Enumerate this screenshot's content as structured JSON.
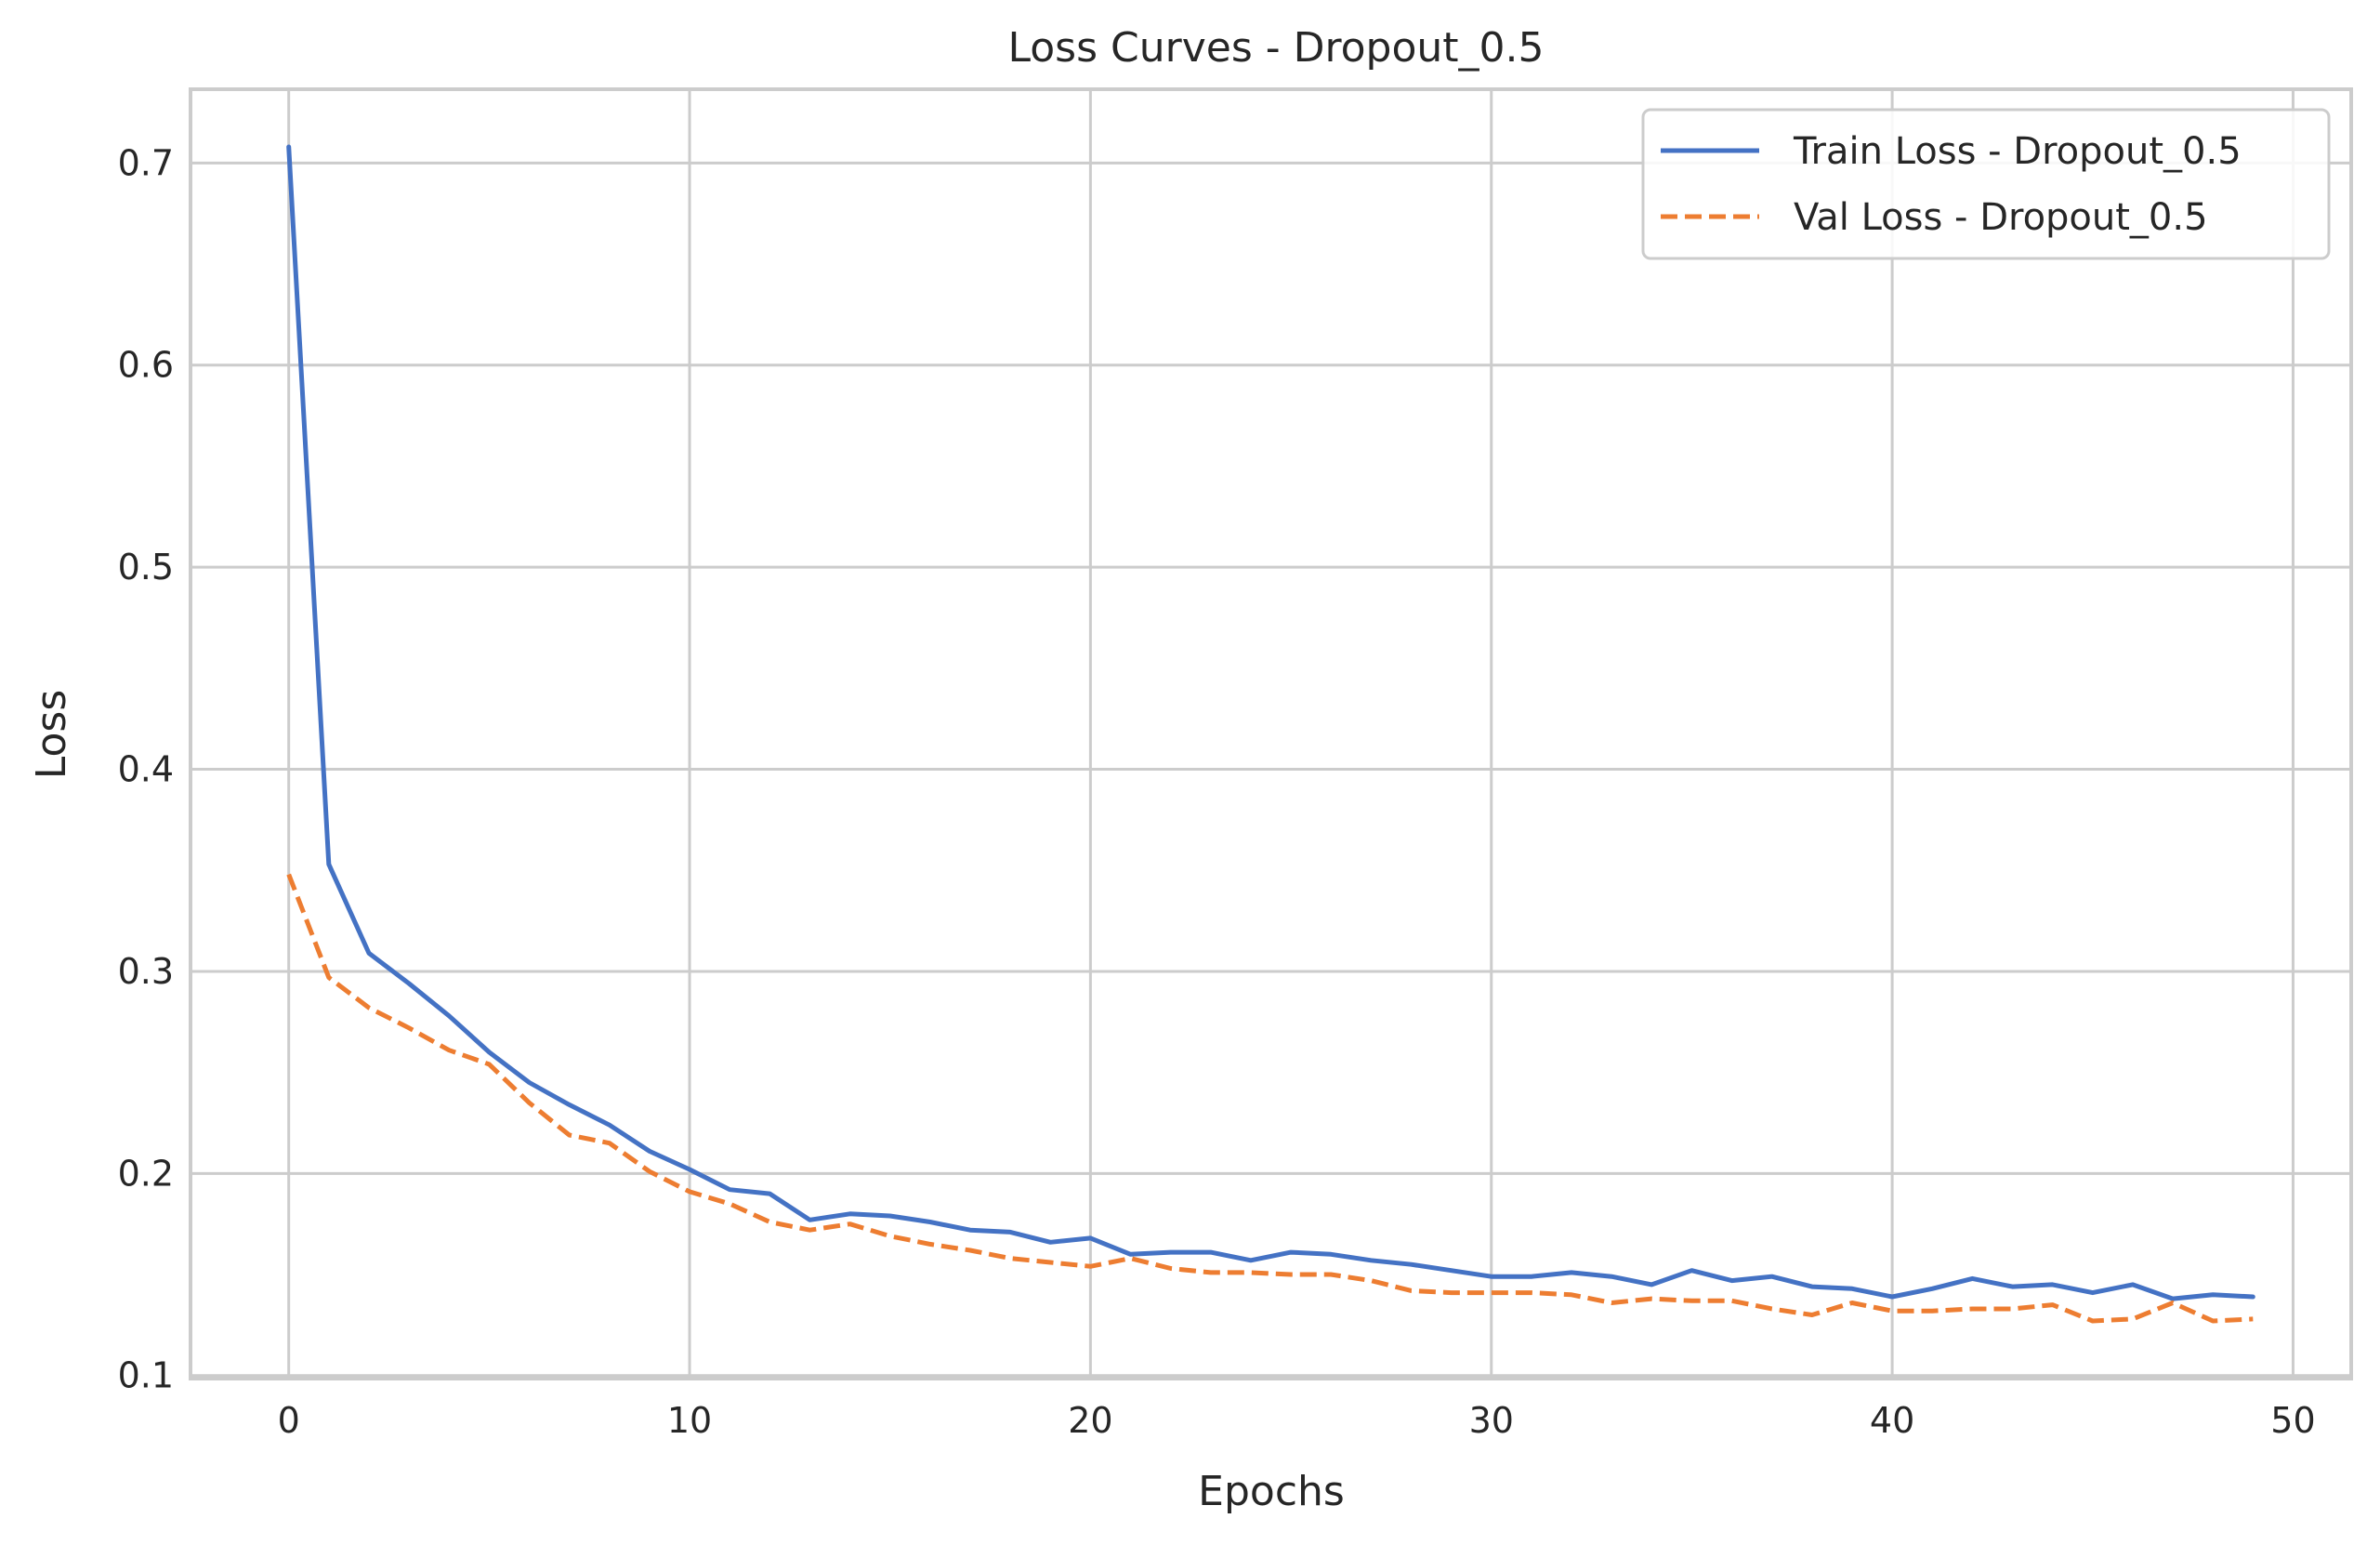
{
  "chart_data": {
    "type": "line",
    "title": "Loss Curves - Dropout_0.5",
    "xlabel": "Epochs",
    "ylabel": "Loss",
    "xlim": [
      -2.45,
      51.45
    ],
    "ylim": [
      0.0985,
      0.7365
    ],
    "xticks": [
      0,
      10,
      20,
      30,
      40,
      50
    ],
    "yticks": [
      0.1,
      0.2,
      0.3,
      0.4,
      0.5,
      0.6,
      0.7
    ],
    "grid": true,
    "legend_position": "top-right",
    "series": [
      {
        "name": "Train Loss - Dropout_0.5",
        "color": "#4472c4",
        "style": "solid",
        "x": [
          0,
          1,
          2,
          3,
          4,
          5,
          6,
          7,
          8,
          9,
          10,
          11,
          12,
          13,
          14,
          15,
          16,
          17,
          18,
          19,
          20,
          21,
          22,
          23,
          24,
          25,
          26,
          27,
          28,
          29,
          30,
          31,
          32,
          33,
          34,
          35,
          36,
          37,
          38,
          39,
          40,
          41,
          42,
          43,
          44,
          45,
          46,
          47,
          48,
          49
        ],
        "y": [
          0.708,
          0.353,
          0.309,
          0.294,
          0.278,
          0.26,
          0.245,
          0.234,
          0.224,
          0.211,
          0.202,
          0.192,
          0.19,
          0.177,
          0.18,
          0.179,
          0.176,
          0.172,
          0.171,
          0.166,
          0.168,
          0.16,
          0.161,
          0.161,
          0.157,
          0.161,
          0.16,
          0.157,
          0.155,
          0.152,
          0.149,
          0.149,
          0.151,
          0.149,
          0.145,
          0.152,
          0.147,
          0.149,
          0.144,
          0.143,
          0.139,
          0.143,
          0.148,
          0.144,
          0.145,
          0.141,
          0.145,
          0.138,
          0.14,
          0.139
        ]
      },
      {
        "name": "Val Loss - Dropout_0.5",
        "color": "#ed7d31",
        "style": "dashed",
        "x": [
          0,
          1,
          2,
          3,
          4,
          5,
          6,
          7,
          8,
          9,
          10,
          11,
          12,
          13,
          14,
          15,
          16,
          17,
          18,
          19,
          20,
          21,
          22,
          23,
          24,
          25,
          26,
          27,
          28,
          29,
          30,
          31,
          32,
          33,
          34,
          35,
          36,
          37,
          38,
          39,
          40,
          41,
          42,
          43,
          44,
          45,
          46,
          47,
          48,
          49
        ],
        "y": [
          0.348,
          0.297,
          0.282,
          0.272,
          0.261,
          0.254,
          0.235,
          0.219,
          0.215,
          0.201,
          0.191,
          0.185,
          0.176,
          0.172,
          0.175,
          0.169,
          0.165,
          0.162,
          0.158,
          0.156,
          0.154,
          0.158,
          0.153,
          0.151,
          0.151,
          0.15,
          0.15,
          0.147,
          0.142,
          0.141,
          0.141,
          0.141,
          0.14,
          0.136,
          0.138,
          0.137,
          0.137,
          0.133,
          0.13,
          0.136,
          0.132,
          0.132,
          0.133,
          0.133,
          0.135,
          0.127,
          0.128,
          0.136,
          0.127,
          0.128
        ]
      }
    ]
  }
}
